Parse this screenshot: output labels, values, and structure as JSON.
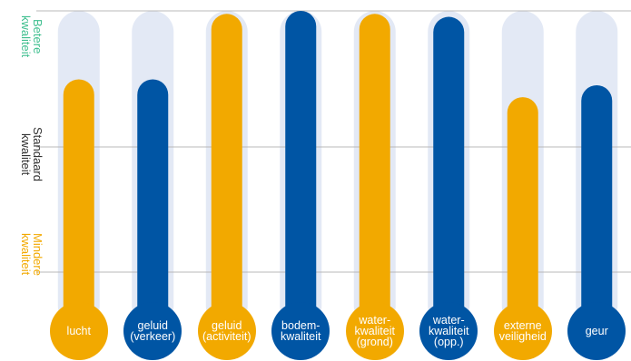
{
  "chart_data": {
    "type": "bar",
    "categories": [
      [
        "lucht"
      ],
      [
        "geluid",
        "(verkeer)"
      ],
      [
        "geluid",
        "(activiteit)"
      ],
      [
        "bodem-",
        "kwaliteit"
      ],
      [
        "water-",
        "kwaliteit",
        "(grond)"
      ],
      [
        "water-",
        "kwaliteit",
        "(opp.)"
      ],
      [
        "externe",
        "veiligheid"
      ],
      [
        "geur"
      ]
    ],
    "values": [
      0.77,
      0.77,
      0.99,
      1.0,
      0.99,
      0.98,
      0.71,
      0.75
    ],
    "bar_colors": [
      "#f2a900",
      "#0055a4",
      "#f2a900",
      "#0055a4",
      "#f2a900",
      "#0055a4",
      "#f2a900",
      "#0055a4"
    ],
    "track_color": "#e3e9f5",
    "ylim": [
      0,
      1
    ],
    "grid": true,
    "y_bands": [
      {
        "lines": [
          "Betere",
          "kwaliteit"
        ],
        "color": "#3fbf8f"
      },
      {
        "lines": [
          "Standaard",
          "kwaliteit"
        ],
        "color": "#333333"
      },
      {
        "lines": [
          "Mindere",
          "kwaliteit"
        ],
        "color": "#f2a900"
      }
    ]
  }
}
